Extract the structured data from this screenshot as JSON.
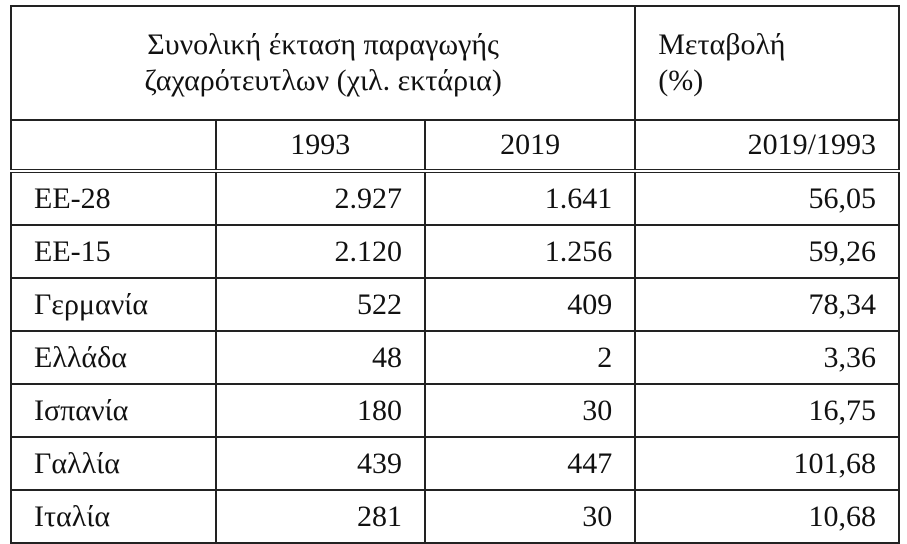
{
  "table": {
    "header": {
      "title": "Συνολική έκταση παραγωγής ζαχαρότευτλων (χιλ. εκτάρια)",
      "change": "Μεταβολή (%)"
    },
    "years": [
      "1993",
      "2019"
    ],
    "ratio": "2019/1993",
    "rows": [
      [
        "ΕΕ-28",
        "2.927",
        "1.641",
        "56,05"
      ],
      [
        "ΕΕ-15",
        "2.120",
        "1.256",
        "59,26"
      ],
      [
        "Γερμανία",
        "522",
        "409",
        "78,34"
      ],
      [
        "Ελλάδα",
        "48",
        "2",
        "3,36"
      ],
      [
        "Ισπανία",
        "180",
        "30",
        "16,75"
      ],
      [
        "Γαλλία",
        "439",
        "447",
        "101,68"
      ],
      [
        "Ιταλία",
        "281",
        "30",
        "10,68"
      ]
    ]
  }
}
